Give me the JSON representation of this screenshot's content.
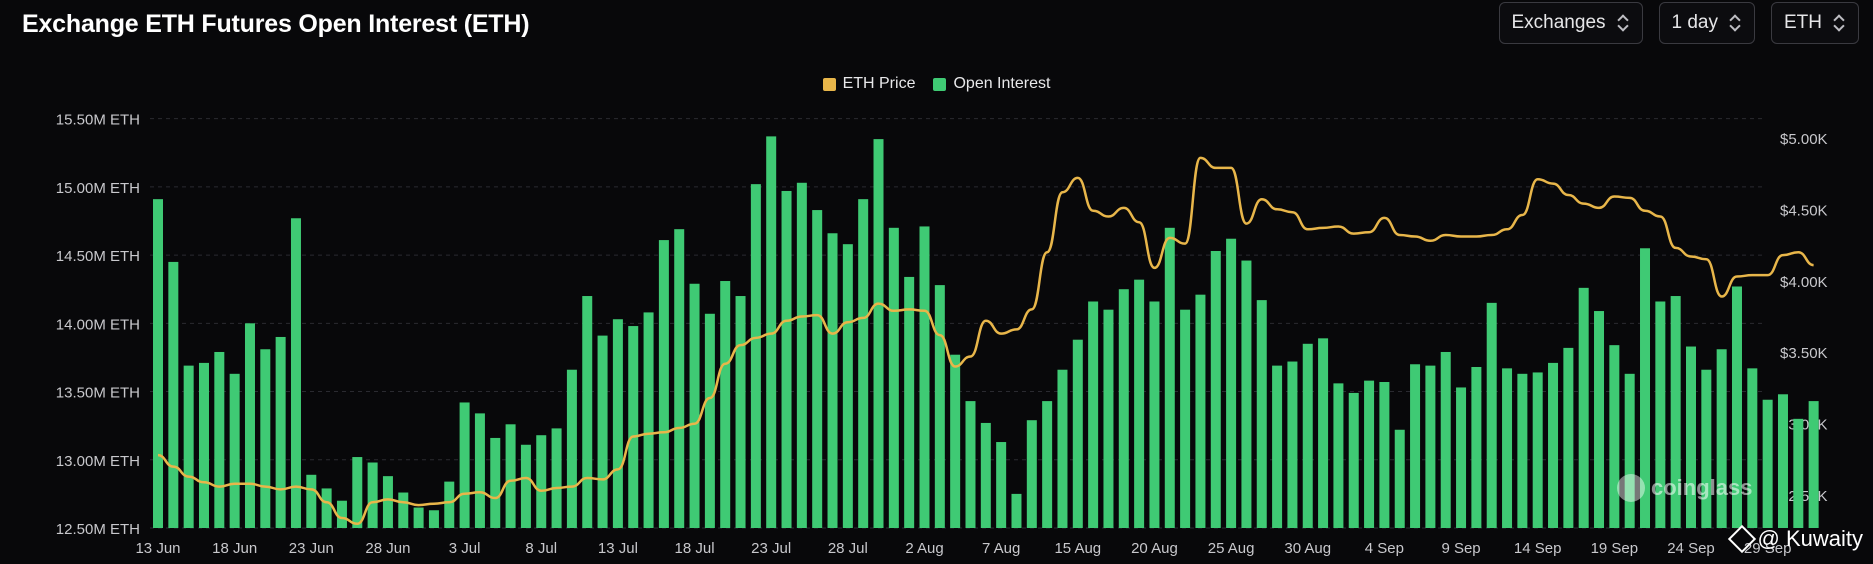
{
  "title": "Exchange ETH Futures Open Interest (ETH)",
  "controls": {
    "exchange_select": "Exchanges",
    "interval_select": "1 day",
    "unit_select": "ETH"
  },
  "watermark": "coinglass",
  "credit": "@ Kuwaity",
  "colors": {
    "price": "#e8b64a",
    "oi": "#3fca74",
    "background": "#08080a",
    "grid": "#2a2a30"
  },
  "chart_data": {
    "type": "bar",
    "title": "Exchange ETH Futures Open Interest (ETH)",
    "legend": [
      "ETH Price",
      "Open Interest"
    ],
    "legend_position": "top-center",
    "grid": true,
    "x_tick_labels": [
      "13 Jun",
      "18 Jun",
      "23 Jun",
      "28 Jun",
      "3 Jul",
      "8 Jul",
      "13 Jul",
      "18 Jul",
      "23 Jul",
      "28 Jul",
      "2 Aug",
      "7 Aug",
      "15 Aug",
      "20 Aug",
      "25 Aug",
      "30 Aug",
      "4 Sep",
      "9 Sep",
      "14 Sep",
      "19 Sep",
      "24 Sep",
      "29 Sep"
    ],
    "x_tick_index": [
      0,
      5,
      10,
      15,
      20,
      25,
      30,
      35,
      40,
      45,
      50,
      55,
      60,
      65,
      70,
      75,
      80,
      85,
      90,
      95,
      100,
      105
    ],
    "y_left": {
      "label": "",
      "ticks": [
        "12.50M ETH",
        "13.00M ETH",
        "13.50M ETH",
        "14.00M ETH",
        "14.50M ETH",
        "15.00M ETH",
        "15.50M ETH"
      ],
      "range": [
        12.5,
        15.6
      ]
    },
    "y_right": {
      "label": "",
      "ticks": [
        "$2.50K",
        "$3.00K",
        "$3.50K",
        "$4.00K",
        "$4.50K",
        "$5.00K"
      ],
      "range": [
        2.27,
        5.23
      ]
    },
    "series": [
      {
        "name": "Open Interest",
        "kind": "bar",
        "axis": "left",
        "unit": "M ETH",
        "values": [
          14.91,
          14.45,
          13.69,
          13.71,
          13.79,
          13.63,
          14.0,
          13.81,
          13.9,
          14.77,
          12.89,
          12.79,
          12.7,
          13.02,
          12.98,
          12.88,
          12.76,
          12.65,
          12.63,
          12.84,
          13.42,
          13.34,
          13.16,
          13.26,
          13.11,
          13.18,
          13.23,
          13.66,
          14.2,
          13.91,
          14.03,
          13.98,
          14.08,
          14.61,
          14.69,
          14.29,
          14.07,
          14.31,
          14.2,
          15.02,
          15.37,
          14.97,
          15.03,
          14.83,
          14.66,
          14.58,
          14.91,
          15.35,
          14.7,
          14.34,
          14.71,
          14.28,
          13.77,
          13.43,
          13.27,
          13.13,
          12.75,
          13.29,
          13.43,
          13.66,
          13.88,
          14.16,
          14.1,
          14.25,
          14.32,
          14.16,
          14.7,
          14.1,
          14.21,
          14.53,
          14.62,
          14.46,
          14.17,
          13.69,
          13.72,
          13.85,
          13.89,
          13.56,
          13.49,
          13.58,
          13.57,
          13.22,
          13.7,
          13.69,
          13.79,
          13.53,
          13.68,
          14.15,
          13.67,
          13.63,
          13.64,
          13.71,
          13.82,
          14.26,
          14.09,
          13.84,
          13.63,
          14.55,
          14.16,
          14.2,
          13.83,
          13.66,
          13.81,
          14.27,
          13.67,
          13.44,
          13.48,
          13.3,
          13.43
        ]
      },
      {
        "name": "ETH Price",
        "kind": "line",
        "axis": "right",
        "unit": "K USD",
        "values": [
          2.78,
          2.7,
          2.63,
          2.59,
          2.56,
          2.58,
          2.58,
          2.56,
          2.54,
          2.56,
          2.54,
          2.45,
          2.34,
          2.3,
          2.45,
          2.47,
          2.45,
          2.43,
          2.44,
          2.45,
          2.51,
          2.52,
          2.48,
          2.6,
          2.62,
          2.53,
          2.55,
          2.56,
          2.62,
          2.61,
          2.68,
          2.91,
          2.93,
          2.94,
          2.97,
          3.0,
          3.18,
          3.42,
          3.55,
          3.6,
          3.63,
          3.72,
          3.75,
          3.76,
          3.63,
          3.71,
          3.74,
          3.84,
          3.79,
          3.8,
          3.79,
          3.62,
          3.4,
          3.47,
          3.72,
          3.63,
          3.66,
          3.8,
          4.2,
          4.62,
          4.72,
          4.49,
          4.45,
          4.51,
          4.41,
          4.09,
          4.3,
          4.26,
          4.86,
          4.79,
          4.79,
          4.4,
          4.57,
          4.5,
          4.48,
          4.36,
          4.37,
          4.38,
          4.33,
          4.34,
          4.44,
          4.32,
          4.31,
          4.28,
          4.32,
          4.31,
          4.31,
          4.32,
          4.36,
          4.46,
          4.71,
          4.68,
          4.6,
          4.54,
          4.51,
          4.59,
          4.58,
          4.49,
          4.45,
          4.23,
          4.17,
          4.15,
          3.89,
          4.03,
          4.04,
          4.04,
          4.18,
          4.2,
          4.11
        ]
      }
    ]
  }
}
